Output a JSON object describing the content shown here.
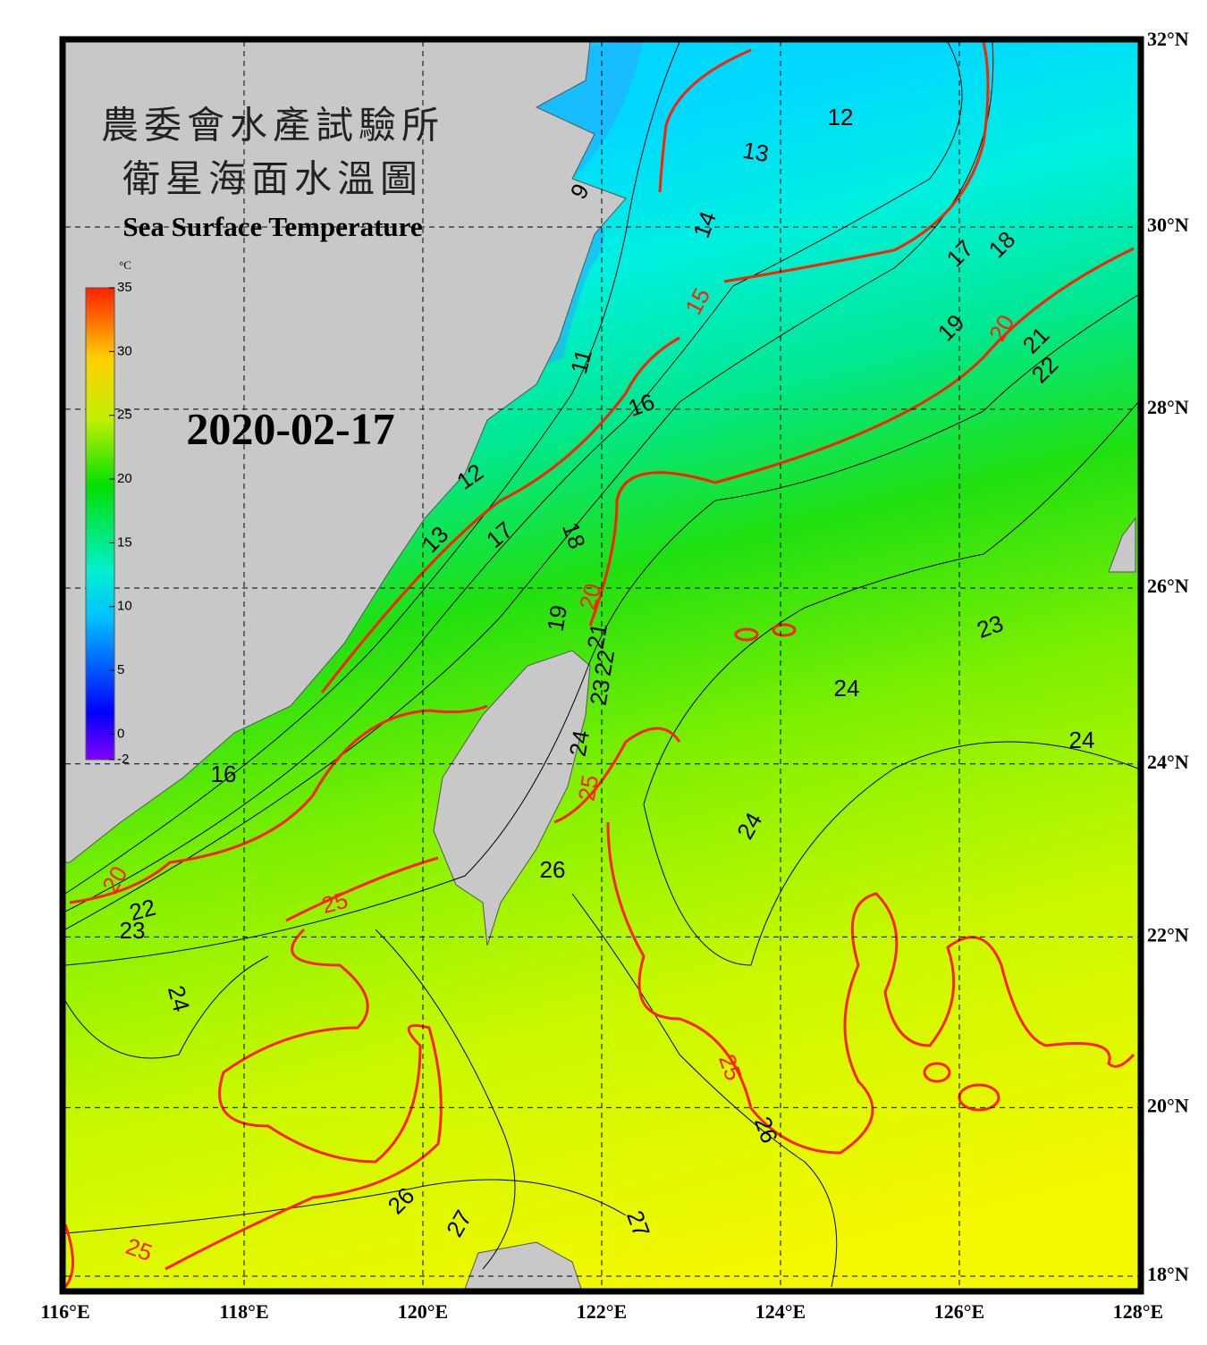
{
  "title_zh_1": "農委會水產試驗所",
  "title_zh_2": "衛星海面水溫圖",
  "title_en": "Sea Surface Temperature",
  "date": "2020-02-17",
  "colorbar": {
    "unit": "°C",
    "lim": [
      -2,
      35
    ],
    "ticks": [
      -2,
      0,
      5,
      10,
      15,
      20,
      25,
      30,
      35
    ]
  },
  "map": {
    "lon_lim": [
      116,
      128
    ],
    "lat_lim": [
      18,
      32
    ],
    "lon_ticks": [
      {
        "value": 116,
        "label": "116°E"
      },
      {
        "value": 118,
        "label": "118°E"
      },
      {
        "value": 120,
        "label": "120°E"
      },
      {
        "value": 122,
        "label": "122°E"
      },
      {
        "value": 124,
        "label": "124°E"
      },
      {
        "value": 126,
        "label": "126°E"
      },
      {
        "value": 128,
        "label": "128°E"
      }
    ],
    "lat_ticks": [
      {
        "value": 18,
        "label": "18°N"
      },
      {
        "value": 20,
        "label": "20°N"
      },
      {
        "value": 22,
        "label": "22°N"
      },
      {
        "value": 24,
        "label": "24°N"
      },
      {
        "value": 26,
        "label": "26°N"
      },
      {
        "value": 28,
        "label": "28°N"
      },
      {
        "value": 30,
        "label": "30°N"
      },
      {
        "value": 32,
        "label": "32°N"
      }
    ]
  },
  "contour_labels_major": [
    "15",
    "20",
    "20",
    "25",
    "25",
    "25",
    "25",
    "20"
  ],
  "contour_labels_minor": [
    "12",
    "13",
    "9",
    "14",
    "17",
    "18",
    "19",
    "21",
    "22",
    "11",
    "16",
    "12",
    "13",
    "17",
    "18",
    "19",
    "21",
    "22",
    "23",
    "23",
    "24",
    "24",
    "24",
    "16",
    "24",
    "26",
    "22",
    "23",
    "24",
    "26",
    "26",
    "27",
    "27"
  ]
}
